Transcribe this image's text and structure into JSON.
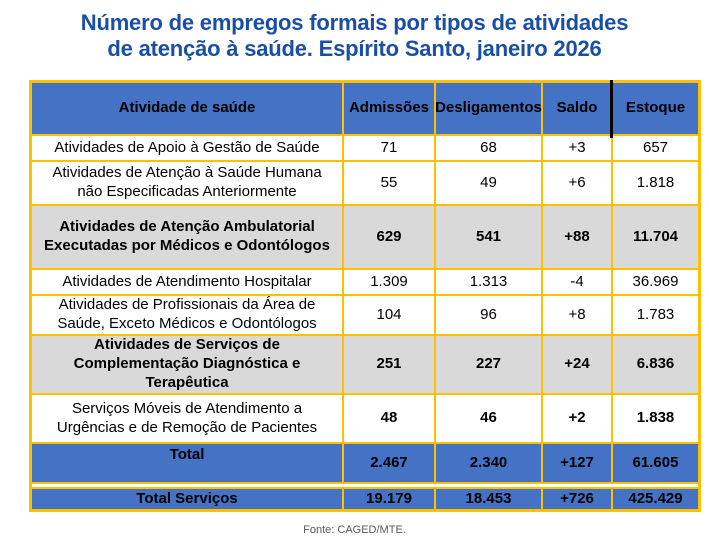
{
  "title": {
    "lines": [
      "Número de empregos formais por tipos de atividades",
      "de atenção à saúde. Espírito Santo, janeiro 2026"
    ]
  },
  "table": {
    "headers": [
      "Atividade de saúde",
      "Admissões",
      "Desligamentos",
      "Saldo",
      "Estoque"
    ],
    "rows": [
      {
        "label": "Atividades de Apoio à Gestão de Saúde",
        "values": [
          "71",
          "68",
          "+3",
          "657"
        ],
        "type": "regular",
        "bold_values": false
      },
      {
        "label": "Atividades de Atenção à Saúde Humana não Especificadas Anteriormente",
        "values": [
          "55",
          "49",
          "+6",
          "1.818"
        ],
        "type": "regular",
        "bold_values": false
      },
      {
        "label": "Atividades de Atenção Ambulatorial Executadas por Médicos e Odontólogos",
        "values": [
          "629",
          "541",
          "+88",
          "11.704"
        ],
        "type": "highlight",
        "bold_values": true
      },
      {
        "label": "Atividades de Atendimento Hospitalar",
        "values": [
          "1.309",
          "1.313",
          "-4",
          "36.969"
        ],
        "type": "regular",
        "bold_values": false
      },
      {
        "label": "Atividades de Profissionais da Área de Saúde, Exceto Médicos e Odontólogos",
        "values": [
          "104",
          "96",
          "+8",
          "1.783"
        ],
        "type": "regular",
        "bold_values": false
      },
      {
        "label": "Atividades de Serviços de Complementação Diagnóstica e Terapêutica",
        "values": [
          "251",
          "227",
          "+24",
          "6.836"
        ],
        "type": "highlight",
        "bold_values": true
      },
      {
        "label": "Serviços Móveis de Atendimento a Urgências e de Remoção de Pacientes",
        "values": [
          "48",
          "46",
          "+2",
          "1.838"
        ],
        "type": "regular",
        "bold_values": true
      },
      {
        "label": "Total",
        "values": [
          "2.467",
          "2.340",
          "+127",
          "61.605"
        ],
        "type": "total",
        "bold_values": true
      },
      {
        "label": "Total Serviços",
        "values": [
          "19.179",
          "18.453",
          "+726",
          "425.429"
        ],
        "type": "total",
        "bold_values": true
      }
    ]
  },
  "footer": {
    "source": "Fonte: CAGED/MTE."
  },
  "colors": {
    "title_blue": "#1A4FA5",
    "cell_blue": "#4472C4",
    "border_yellow": "#FFC000",
    "row_gray": "#D9D9D9",
    "header_divider_black": "#000000"
  }
}
